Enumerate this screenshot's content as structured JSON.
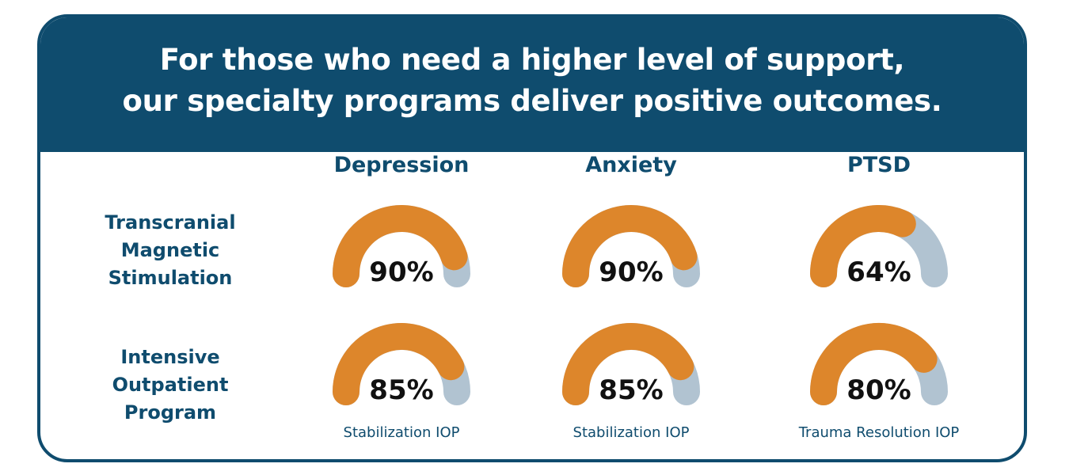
{
  "headline": {
    "line1": "For those who need a higher level of support,",
    "line2": "our specialty programs deliver positive outcomes."
  },
  "colors": {
    "navy": "#0f4c6e",
    "orange": "#dd862b",
    "track": "#b1c3d1",
    "value_text": "#111111"
  },
  "chart_data": {
    "type": "gauge",
    "columns": [
      "Depression",
      "Anxiety",
      "PTSD"
    ],
    "rows": [
      {
        "label_lines": [
          "Transcranial",
          "Magnetic",
          "Stimulation"
        ],
        "values": [
          90,
          90,
          64
        ],
        "display": [
          "90%",
          "90%",
          "64%"
        ],
        "captions": [
          "",
          "",
          ""
        ]
      },
      {
        "label_lines": [
          "Intensive",
          "Outpatient",
          "Program"
        ],
        "values": [
          85,
          85,
          80
        ],
        "display": [
          "85%",
          "85%",
          "80%"
        ],
        "captions": [
          "Stabilization IOP",
          "Stabilization IOP",
          "Trauma Resolution IOP"
        ]
      }
    ],
    "max": 100
  }
}
